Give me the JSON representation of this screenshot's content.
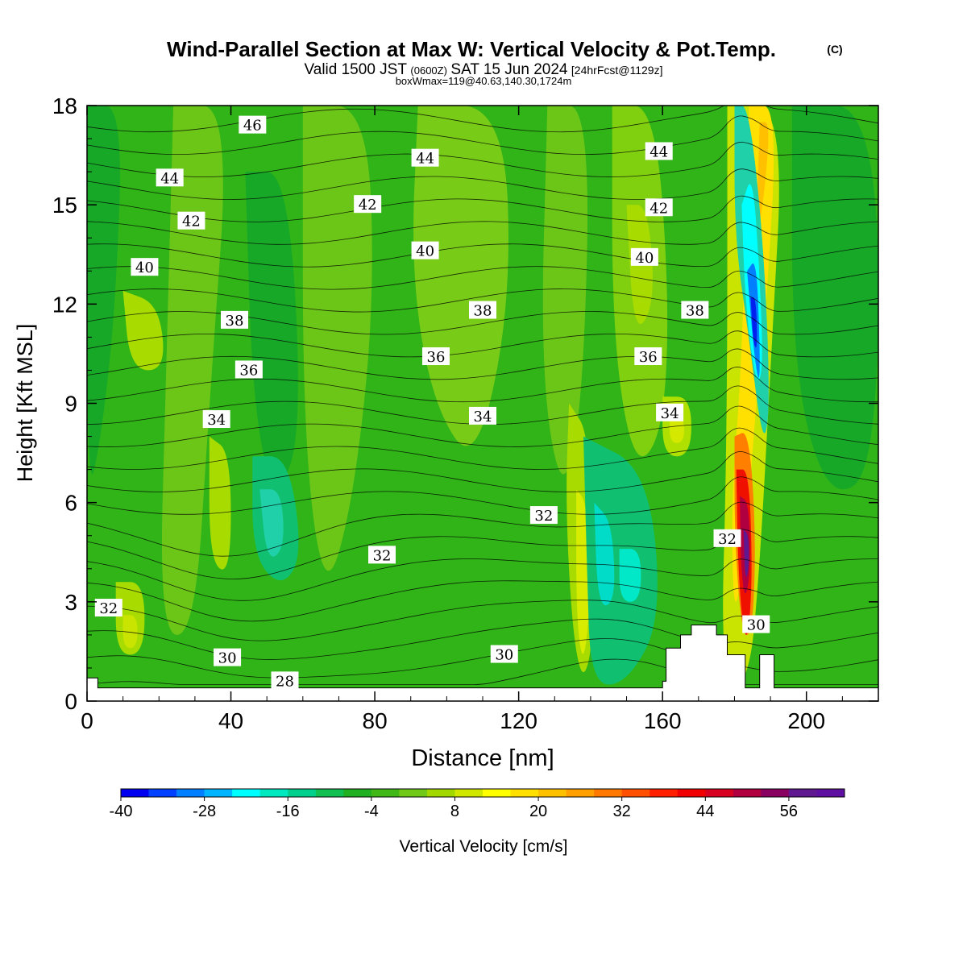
{
  "title": {
    "main": "Wind-Parallel Section at Max W: Vertical Velocity & Pot.Temp.",
    "copyright": "(C)",
    "valid_prefix": "Valid 1500 JST",
    "valid_utc": "(0600Z)",
    "valid_date": "SAT 15 Jun 2024",
    "forecast": "[24hrFcst@1129z]",
    "boxwmax": "boxWmax=119@40.63,140.30,1724m"
  },
  "chart_data": {
    "type": "contour",
    "xlabel": "Distance [nm]",
    "ylabel": "Height [Kft MSL]",
    "xlim": [
      0,
      220
    ],
    "ylim": [
      0,
      18
    ],
    "x_ticks": [
      0,
      40,
      80,
      120,
      160,
      200
    ],
    "y_ticks": [
      0,
      3,
      6,
      9,
      12,
      15,
      18
    ],
    "colorbar": {
      "label": "Vertical Velocity [cm/s]",
      "min": -40,
      "max": 64,
      "step": 4,
      "tick_labels": [
        -40,
        -28,
        -16,
        -4,
        8,
        20,
        32,
        44,
        56
      ],
      "colors": [
        "#0000f0",
        "#0040ff",
        "#0080ff",
        "#00b4ff",
        "#00ffff",
        "#00e8c0",
        "#00d08c",
        "#10c050",
        "#20b020",
        "#40b818",
        "#70c818",
        "#a0d800",
        "#d0e800",
        "#ffff00",
        "#ffe000",
        "#ffc000",
        "#ffa000",
        "#ff7800",
        "#ff5000",
        "#ff2000",
        "#f00000",
        "#d80020",
        "#b00040",
        "#880060",
        "#601890",
        "#6010a0"
      ]
    },
    "theta_labels": [
      {
        "value": "46",
        "x": 46,
        "y": 17.4
      },
      {
        "value": "44",
        "x": 23,
        "y": 15.8
      },
      {
        "value": "44",
        "x": 94,
        "y": 16.4
      },
      {
        "value": "44",
        "x": 159,
        "y": 16.6
      },
      {
        "value": "42",
        "x": 29,
        "y": 14.5
      },
      {
        "value": "42",
        "x": 78,
        "y": 15.0
      },
      {
        "value": "42",
        "x": 159,
        "y": 14.9
      },
      {
        "value": "40",
        "x": 16,
        "y": 13.1
      },
      {
        "value": "40",
        "x": 94,
        "y": 13.6
      },
      {
        "value": "40",
        "x": 155,
        "y": 13.4
      },
      {
        "value": "38",
        "x": 41,
        "y": 11.5
      },
      {
        "value": "38",
        "x": 110,
        "y": 11.8
      },
      {
        "value": "38",
        "x": 169,
        "y": 11.8
      },
      {
        "value": "36",
        "x": 45,
        "y": 10.0
      },
      {
        "value": "36",
        "x": 97,
        "y": 10.4
      },
      {
        "value": "36",
        "x": 156,
        "y": 10.4
      },
      {
        "value": "34",
        "x": 36,
        "y": 8.5
      },
      {
        "value": "34",
        "x": 110,
        "y": 8.6
      },
      {
        "value": "34",
        "x": 162,
        "y": 8.7
      },
      {
        "value": "32",
        "x": 127,
        "y": 5.6
      },
      {
        "value": "32",
        "x": 82,
        "y": 4.4
      },
      {
        "value": "32",
        "x": 178,
        "y": 4.9
      },
      {
        "value": "32",
        "x": 6,
        "y": 2.8
      },
      {
        "value": "30",
        "x": 39,
        "y": 1.3
      },
      {
        "value": "30",
        "x": 116,
        "y": 1.4
      },
      {
        "value": "30",
        "x": 186,
        "y": 2.3
      },
      {
        "value": "28",
        "x": 55,
        "y": 0.6
      }
    ]
  }
}
